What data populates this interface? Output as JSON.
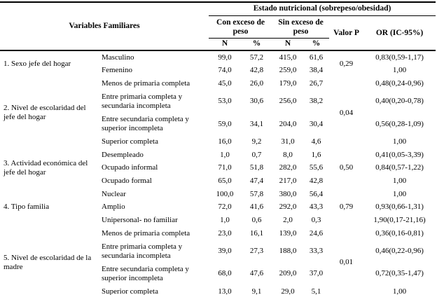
{
  "table": {
    "header": {
      "variables_label": "Variables Familiares",
      "estado_label": "Estado nutricional (sobrepeso/obesidad)",
      "with_excess_label": "Con exceso de peso",
      "without_excess_label": "Sin exceso de peso",
      "n_label": "N",
      "pct_label": "%",
      "valor_p_label": "Valor P",
      "or_label": "OR (IC-95%)"
    },
    "groups": [
      {
        "label": "1. Sexo jefe del hogar",
        "valor_p": "0,29",
        "rows": [
          {
            "category": "Masculino",
            "n1": "99,0",
            "p1": "57,2",
            "n2": "415,0",
            "p2": "61,6",
            "or": "0,83(0,59-1,17)"
          },
          {
            "category": "Femenino",
            "n1": "74,0",
            "p1": "42,8",
            "n2": "259,0",
            "p2": "38,4",
            "or": "1,00"
          }
        ]
      },
      {
        "label": "2. Nivel de escolaridad del jefe del hogar",
        "valor_p": "0,04",
        "rows": [
          {
            "category": "Menos de primaria completa",
            "n1": "45,0",
            "p1": "26,0",
            "n2": "179,0",
            "p2": "26,7",
            "or": "0,48(0,24-0,96)"
          },
          {
            "category": "Entre primaria completa y secundaria incompleta",
            "n1": "53,0",
            "p1": "30,6",
            "n2": "256,0",
            "p2": "38,2",
            "or": "0,40(0,20-0,78)"
          },
          {
            "category": "Entre secundaria completa y superior incompleta",
            "n1": "59,0",
            "p1": "34,1",
            "n2": "204,0",
            "p2": "30,4",
            "or": "0,56(0,28-1,09)"
          },
          {
            "category": "Superior completa",
            "n1": "16,0",
            "p1": "9,2",
            "n2": "31,0",
            "p2": "4,6",
            "or": "1,00"
          }
        ]
      },
      {
        "label": "3. Actividad económica del jefe del hogar",
        "valor_p": "0,50",
        "rows": [
          {
            "category": "Desempleado",
            "n1": "1,0",
            "p1": "0,7",
            "n2": "8,0",
            "p2": "1,6",
            "or": "0,41(0,05-3,39)"
          },
          {
            "category": "Ocupado informal",
            "n1": "71,0",
            "p1": "51,8",
            "n2": "282,0",
            "p2": "55,6",
            "or": "0,84(0,57-1,22)"
          },
          {
            "category": "Ocupado formal",
            "n1": "65,0",
            "p1": "47,4",
            "n2": "217,0",
            "p2": "42,8",
            "or": "1,00"
          }
        ]
      },
      {
        "label": "4. Tipo familia",
        "valor_p": "0,79",
        "rows": [
          {
            "category": "Nuclear",
            "n1": "100,0",
            "p1": "57,8",
            "n2": "380,0",
            "p2": "56,4",
            "or": "1,00"
          },
          {
            "category": "Amplio",
            "n1": "72,0",
            "p1": "41,6",
            "n2": "292,0",
            "p2": "43,3",
            "or": "0,93(0,66-1,31)"
          },
          {
            "category": "Unipersonal- no familiar",
            "n1": "1,0",
            "p1": "0,6",
            "n2": "2,0",
            "p2": "0,3",
            "or": "1,90(0,17-21,16)"
          }
        ]
      },
      {
        "label": "5. Nivel de escolaridad de la madre",
        "valor_p": "0,01",
        "rows": [
          {
            "category": "Menos de primaria completa",
            "n1": "23,0",
            "p1": "16,1",
            "n2": "139,0",
            "p2": "24,6",
            "or": "0,36(0,16-0,81)"
          },
          {
            "category": "Entre primaria completa y secundaria incompleta",
            "n1": "39,0",
            "p1": "27,3",
            "n2": "188,0",
            "p2": "33,3",
            "or": "0,46(0,22-0,96)"
          },
          {
            "category": "Entre secundaria completa y superior incompleta",
            "n1": "68,0",
            "p1": "47,6",
            "n2": "209,0",
            "p2": "37,0",
            "or": "0,72(0,35-1,47)"
          },
          {
            "category": "Superior completa",
            "n1": "13,0",
            "p1": "9,1",
            "n2": "29,0",
            "p2": "5,1",
            "or": "1,00"
          }
        ]
      }
    ]
  }
}
